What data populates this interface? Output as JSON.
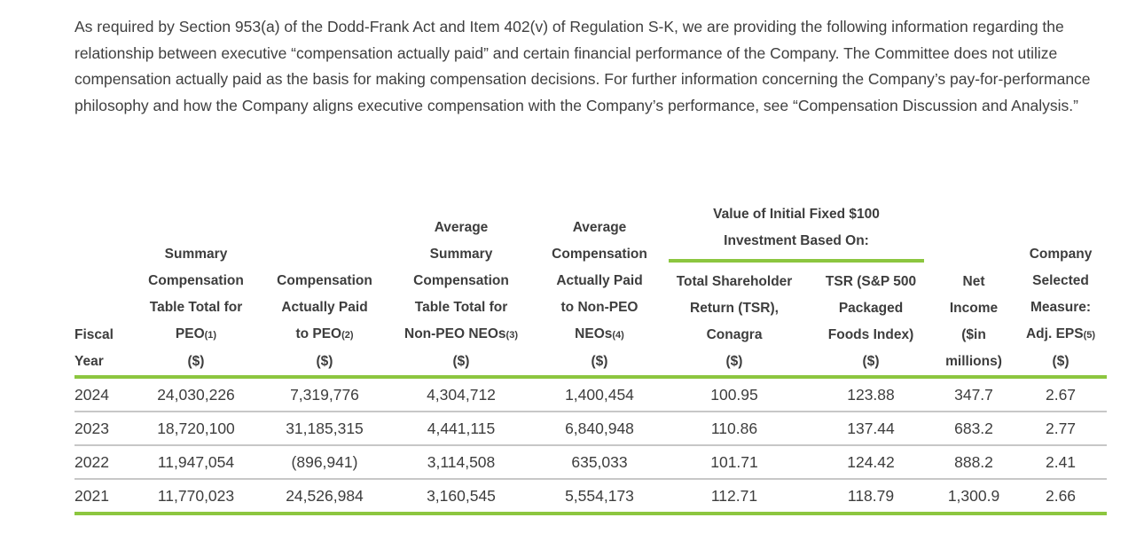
{
  "intro": {
    "text": "As required by Section 953(a) of the Dodd-Frank Act and Item 402(v) of Regulation S-K, we are providing the following information regarding the relationship between executive “compensation actually paid” and certain financial performance of the Company. The Committee does not utilize compensation actually paid as the basis for making compensation decisions. For further information concerning the Company’s pay-for-performance philosophy and how the Company aligns executive compensation with the Company’s performance, see “Compensation Discussion and Analysis.”"
  },
  "colors": {
    "accent_green": "#8CC63F",
    "row_divider": "#c7c7c7",
    "text": "#3d3d3d"
  },
  "table": {
    "group_header": {
      "lines": [
        "Value of Initial Fixed $100",
        "Investment Based On:"
      ]
    },
    "columns": [
      {
        "id": "fiscal-year",
        "lines": [
          "Fiscal",
          "Year"
        ],
        "group": false
      },
      {
        "id": "summary-compensation-table-total-peo",
        "lines": [
          "Summary",
          "Compensation",
          "Table Total for",
          "PEO(1)",
          "($)"
        ],
        "group": false
      },
      {
        "id": "compensation-actually-paid-peo",
        "lines": [
          "Compensation",
          "Actually Paid",
          "to PEO(2)",
          "($)"
        ],
        "group": false
      },
      {
        "id": "average-summary-compensation-non-peo",
        "lines": [
          "Average",
          "Summary",
          "Compensation",
          "Table Total for",
          "Non-PEO NEOs(3)",
          "($)"
        ],
        "group": false
      },
      {
        "id": "average-compensation-paid-non-peo",
        "lines": [
          "Average",
          "Compensation",
          "Actually Paid",
          "to Non-PEO",
          "NEOs(4)",
          "($)"
        ],
        "group": false
      },
      {
        "id": "tsr-conagra",
        "lines": [
          "Total Shareholder",
          "Return (TSR),",
          "Conagra",
          "($)"
        ],
        "group": true
      },
      {
        "id": "tsr-sp500-packaged-foods",
        "lines": [
          "TSR (S&P 500",
          "Packaged",
          "Foods Index)",
          "($)"
        ],
        "group": true
      },
      {
        "id": "net-income",
        "lines": [
          "Net",
          "Income",
          "($in",
          "millions)"
        ],
        "group": false
      },
      {
        "id": "company-selected-measure-adj-eps",
        "lines": [
          "Company",
          "Selected",
          "Measure:",
          "Adj. EPS(5)",
          "($)"
        ],
        "group": false
      }
    ],
    "rows": [
      [
        "2024",
        "24,030,226",
        "7,319,776",
        "4,304,712",
        "1,400,454",
        "100.95",
        "123.88",
        "347.7",
        "2.67"
      ],
      [
        "2023",
        "18,720,100",
        "31,185,315",
        "4,441,115",
        "6,840,948",
        "110.86",
        "137.44",
        "683.2",
        "2.77"
      ],
      [
        "2022",
        "11,947,054",
        "(896,941)",
        "3,114,508",
        "635,033",
        "101.71",
        "124.42",
        "888.2",
        "2.41"
      ],
      [
        "2021",
        "11,770,023",
        "24,526,984",
        "3,160,545",
        "5,554,173",
        "112.71",
        "118.79",
        "1,300.9",
        "2.66"
      ]
    ]
  }
}
